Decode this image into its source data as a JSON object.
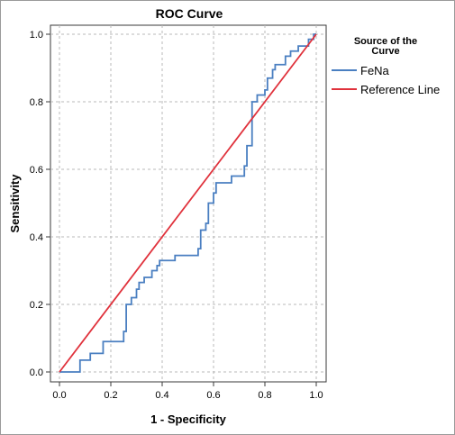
{
  "chart_data": {
    "type": "line",
    "title": "ROC Curve",
    "xlabel": "1 - Specificity",
    "ylabel": "Sensitivity",
    "xlim": [
      0,
      1
    ],
    "ylim": [
      0,
      1
    ],
    "grid": true,
    "x_ticks": [
      "0.0",
      "0.2",
      "0.4",
      "0.6",
      "0.8",
      "1.0"
    ],
    "y_ticks": [
      "0.0",
      "0.2",
      "0.4",
      "0.6",
      "0.8",
      "1.0"
    ],
    "legend": {
      "title_line1": "Source of the",
      "title_line2": "Curve",
      "placement": "top-right"
    },
    "series": [
      {
        "name": "FeNa",
        "color": "#4a7fc1",
        "style": "step",
        "points": [
          [
            0.0,
            0.0
          ],
          [
            0.08,
            0.0
          ],
          [
            0.08,
            0.035
          ],
          [
            0.12,
            0.035
          ],
          [
            0.12,
            0.055
          ],
          [
            0.17,
            0.055
          ],
          [
            0.17,
            0.09
          ],
          [
            0.25,
            0.09
          ],
          [
            0.25,
            0.12
          ],
          [
            0.26,
            0.12
          ],
          [
            0.26,
            0.2
          ],
          [
            0.28,
            0.2
          ],
          [
            0.28,
            0.22
          ],
          [
            0.3,
            0.22
          ],
          [
            0.3,
            0.245
          ],
          [
            0.31,
            0.245
          ],
          [
            0.31,
            0.265
          ],
          [
            0.33,
            0.265
          ],
          [
            0.33,
            0.28
          ],
          [
            0.36,
            0.28
          ],
          [
            0.36,
            0.3
          ],
          [
            0.38,
            0.3
          ],
          [
            0.38,
            0.315
          ],
          [
            0.39,
            0.315
          ],
          [
            0.39,
            0.33
          ],
          [
            0.45,
            0.33
          ],
          [
            0.45,
            0.345
          ],
          [
            0.54,
            0.345
          ],
          [
            0.54,
            0.365
          ],
          [
            0.55,
            0.365
          ],
          [
            0.55,
            0.42
          ],
          [
            0.57,
            0.42
          ],
          [
            0.57,
            0.44
          ],
          [
            0.58,
            0.44
          ],
          [
            0.58,
            0.5
          ],
          [
            0.6,
            0.5
          ],
          [
            0.6,
            0.53
          ],
          [
            0.61,
            0.53
          ],
          [
            0.61,
            0.56
          ],
          [
            0.67,
            0.56
          ],
          [
            0.67,
            0.58
          ],
          [
            0.72,
            0.58
          ],
          [
            0.72,
            0.61
          ],
          [
            0.73,
            0.61
          ],
          [
            0.73,
            0.67
          ],
          [
            0.75,
            0.67
          ],
          [
            0.75,
            0.8
          ],
          [
            0.77,
            0.8
          ],
          [
            0.77,
            0.82
          ],
          [
            0.8,
            0.82
          ],
          [
            0.8,
            0.835
          ],
          [
            0.81,
            0.835
          ],
          [
            0.81,
            0.87
          ],
          [
            0.83,
            0.87
          ],
          [
            0.83,
            0.895
          ],
          [
            0.84,
            0.895
          ],
          [
            0.84,
            0.91
          ],
          [
            0.88,
            0.91
          ],
          [
            0.88,
            0.935
          ],
          [
            0.9,
            0.935
          ],
          [
            0.9,
            0.95
          ],
          [
            0.93,
            0.95
          ],
          [
            0.93,
            0.965
          ],
          [
            0.97,
            0.965
          ],
          [
            0.97,
            0.985
          ],
          [
            0.99,
            0.985
          ],
          [
            0.99,
            1.0
          ],
          [
            1.0,
            1.0
          ]
        ]
      },
      {
        "name": "Reference Line",
        "color": "#e0323c",
        "style": "line",
        "points": [
          [
            0.0,
            0.0
          ],
          [
            1.0,
            1.0
          ]
        ]
      }
    ]
  }
}
